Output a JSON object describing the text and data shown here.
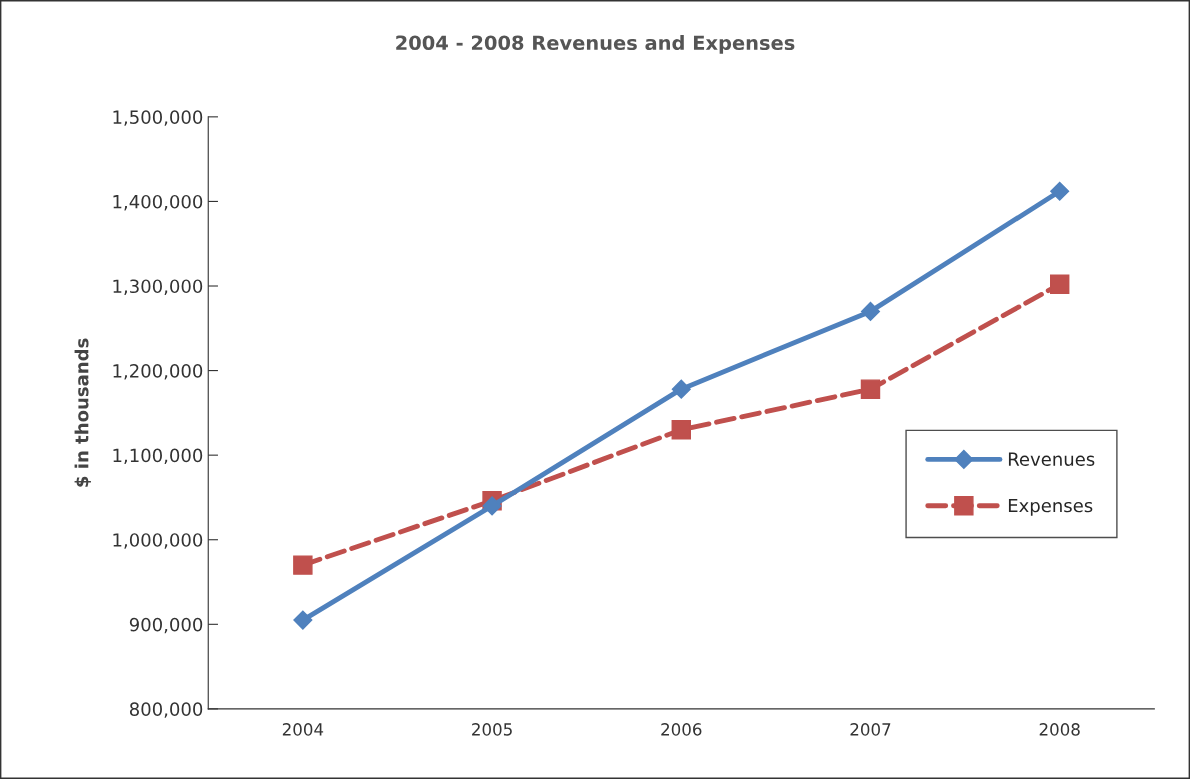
{
  "chart_data": {
    "type": "line",
    "title": "2004 - 2008 Revenues and Expenses",
    "ylabel": "$ in thousands",
    "categories": [
      "2004",
      "2005",
      "2006",
      "2007",
      "2008"
    ],
    "series": [
      {
        "name": "Revenues",
        "color": "#4f81bd",
        "marker": "diamond",
        "line_style": "solid",
        "values": [
          905000,
          1040000,
          1178000,
          1270000,
          1412000
        ]
      },
      {
        "name": "Expenses",
        "color": "#c0504d",
        "marker": "square",
        "line_style": "dashed",
        "values": [
          970000,
          1046000,
          1130000,
          1178000,
          1302000
        ]
      }
    ],
    "ylim": [
      800000,
      1500000
    ],
    "yticks": [
      {
        "value": 800000,
        "label": "800,000"
      },
      {
        "value": 900000,
        "label": "900,000"
      },
      {
        "value": 1000000,
        "label": "1,000,000"
      },
      {
        "value": 1100000,
        "label": "1,100,000"
      },
      {
        "value": 1200000,
        "label": "1,200,000"
      },
      {
        "value": 1300000,
        "label": "1,300,000"
      },
      {
        "value": 1400000,
        "label": "1,400,000"
      },
      {
        "value": 1500000,
        "label": "1,500,000"
      }
    ],
    "grid": false,
    "legend": "right"
  }
}
